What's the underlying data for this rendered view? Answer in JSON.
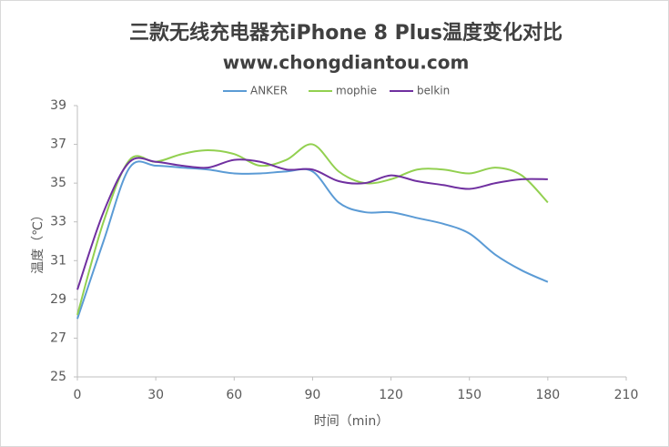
{
  "chart_data": {
    "type": "line",
    "title": "三款无线充电器充iPhone 8 Plus温度变化对比",
    "subtitle": "www.chongdiantou.com",
    "x_label": "时间（min）",
    "y_label": "温度（℃）",
    "x": [
      0,
      10,
      20,
      30,
      40,
      50,
      60,
      70,
      80,
      90,
      100,
      110,
      120,
      130,
      140,
      150,
      160,
      170,
      180
    ],
    "series": [
      {
        "name": "ANKER",
        "color": "#5b9bd5",
        "values": [
          28,
          32,
          35.8,
          35.9,
          35.8,
          35.7,
          35.5,
          35.5,
          35.6,
          35.6,
          34,
          33.5,
          33.5,
          33.2,
          32.9,
          32.4,
          31.3,
          30.5,
          29.9
        ]
      },
      {
        "name": "mophie",
        "color": "#92d050",
        "values": [
          28.2,
          33,
          36.2,
          36.1,
          36.5,
          36.7,
          36.5,
          35.9,
          36.2,
          37,
          35.6,
          35,
          35.2,
          35.7,
          35.7,
          35.5,
          35.8,
          35.4,
          34
        ]
      },
      {
        "name": "belkin",
        "color": "#7030a0",
        "values": [
          29.5,
          33.5,
          36.1,
          36.1,
          35.9,
          35.8,
          36.2,
          36.1,
          35.7,
          35.7,
          35.1,
          35,
          35.4,
          35.1,
          34.9,
          34.7,
          35,
          35.2,
          35.2
        ]
      }
    ],
    "xlim": [
      0,
      210
    ],
    "xticks": [
      0,
      30,
      60,
      90,
      120,
      150,
      180,
      210
    ],
    "ylim": [
      25,
      39
    ],
    "yticks": [
      25,
      27,
      29,
      31,
      33,
      35,
      37,
      39
    ],
    "legend": "top"
  }
}
